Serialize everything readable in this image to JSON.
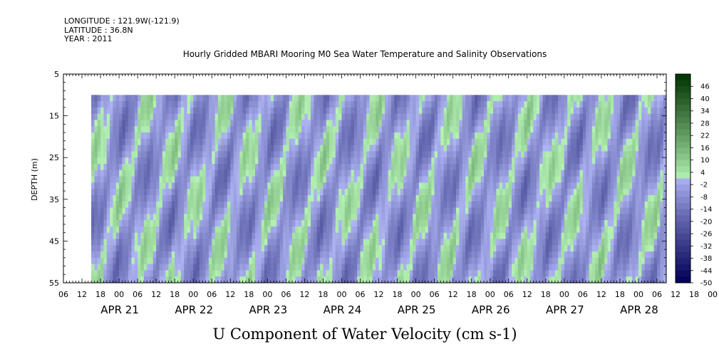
{
  "header": {
    "longitude": "LONGITUDE : 121.9W(-121.9)",
    "latitude": "LATITUDE : 36.8N",
    "year": "YEAR : 2011"
  },
  "chart_data": {
    "type": "heatmap",
    "title": "Hourly Gridded MBARI Mooring M0 Sea Water Temperature and Salinity Observations",
    "xlabel": "U Component of Water Velocity (cm s-1)",
    "ylabel": "DEPTH (m)",
    "ylim": [
      55,
      5
    ],
    "y_ticks": [
      5,
      15,
      25,
      35,
      45,
      55
    ],
    "data_depth_range": [
      10,
      55
    ],
    "x_hour_ticks": [
      "06",
      "12",
      "18",
      "00",
      "06",
      "12",
      "18",
      "00",
      "06",
      "12",
      "18",
      "00",
      "06",
      "12",
      "18",
      "00",
      "06",
      "12",
      "18",
      "00",
      "06",
      "12",
      "18",
      "00",
      "06",
      "12",
      "18",
      "00",
      "06",
      "12",
      "18",
      "00",
      "06",
      "12",
      "18",
      "00",
      "06",
      "12",
      "18",
      "00",
      "06"
    ],
    "x_start": "APR 20 06:00",
    "x_end": "APR 28 09:00",
    "data_start": "APR 20 14:00",
    "date_labels": [
      "APR 21",
      "APR 22",
      "APR 23",
      "APR 24",
      "APR 25",
      "APR 26",
      "APR 27",
      "APR 28"
    ],
    "colorbar": {
      "labels": [
        "46",
        "40",
        "34",
        "28",
        "22",
        "16",
        "10",
        "4",
        "-2",
        "-8",
        "-14",
        "-20",
        "-26",
        "-32",
        "-38",
        "-44",
        "-50"
      ],
      "min": -50,
      "max": 52,
      "step": 3,
      "colors": {
        "pos_high": "#003300",
        "pos_low": "#b5f2b5",
        "neg_low": "#b5bbf8",
        "neg_high": "#000055"
      }
    },
    "dominant_values": {
      "description_omitted": true
    }
  }
}
